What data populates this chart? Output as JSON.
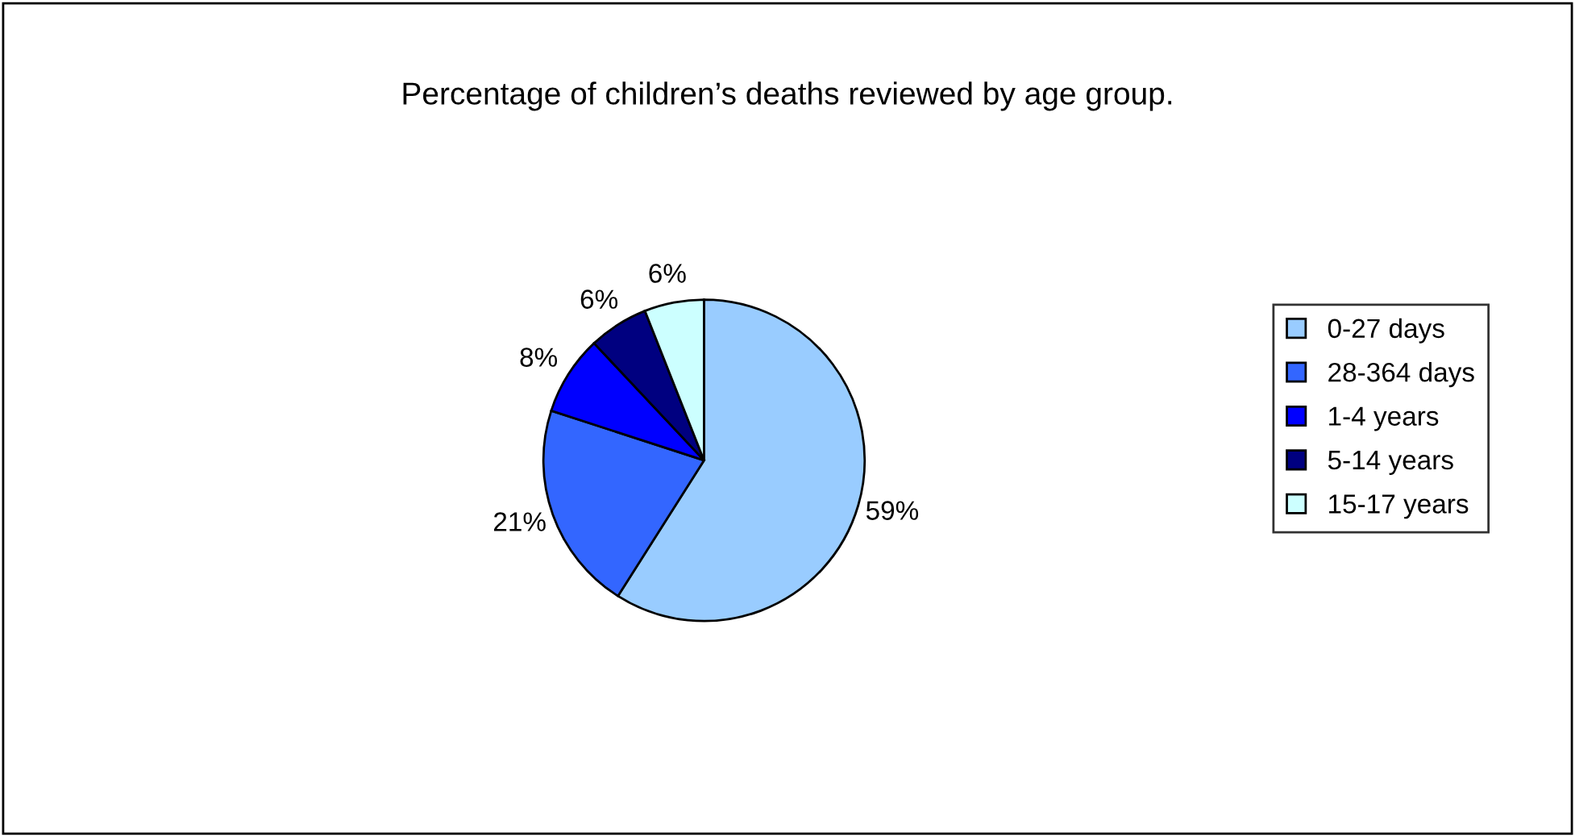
{
  "chart_data": {
    "type": "pie",
    "title": "Percentage of children’s deaths reviewed by age group.",
    "categories": [
      "0-27 days",
      "28-364 days",
      "1-4 years",
      "5-14 years",
      "15-17 years"
    ],
    "values": [
      59,
      21,
      8,
      6,
      6
    ],
    "colors": [
      "#99ccff",
      "#3366ff",
      "#0000ff",
      "#000080",
      "#ccffff"
    ],
    "value_labels": [
      "59%",
      "21%",
      "8%",
      "6%",
      "6%"
    ],
    "legend": "right"
  }
}
